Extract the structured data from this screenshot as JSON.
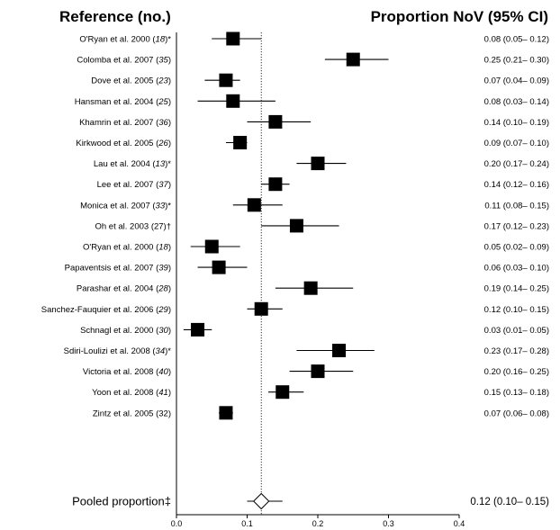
{
  "headers": {
    "left": "Reference (no.)",
    "right": "Proportion NoV (95% CI)"
  },
  "chart_data": {
    "type": "forest",
    "xlim": [
      0.0,
      0.4
    ],
    "xticks": [
      "0.0",
      "0.1",
      "0.2",
      "0.3",
      "0.4"
    ],
    "reference_line": 0.12,
    "studies": [
      {
        "pre": "O'Ryan et al. 2000 (",
        "ref": "18",
        "post": ")*",
        "est": 0.08,
        "lo": 0.05,
        "hi": 0.12,
        "ci_text": "0.08 (0.05– 0.12)"
      },
      {
        "pre": "Colomba et al. 2007 (",
        "ref": "35",
        "post": ")",
        "est": 0.25,
        "lo": 0.21,
        "hi": 0.3,
        "ci_text": "0.25 (0.21– 0.30)"
      },
      {
        "pre": "Dove et al. 2005 (",
        "ref": "23",
        "post": ")",
        "est": 0.07,
        "lo": 0.04,
        "hi": 0.09,
        "ci_text": "0.07 (0.04– 0.09)"
      },
      {
        "pre": "Hansman et al. 2004 (",
        "ref": "25",
        "post": ")",
        "est": 0.08,
        "lo": 0.03,
        "hi": 0.14,
        "ci_text": "0.08 (0.03– 0.14)"
      },
      {
        "pre": "Khamrin et al. 2007 (",
        "ref": "36",
        "post": ")",
        "est": 0.14,
        "lo": 0.1,
        "hi": 0.19,
        "ci_text": "0.14 (0.10– 0.19)"
      },
      {
        "pre": "Kirkwood et al. 2005 (",
        "ref": "26",
        "post": ")",
        "est": 0.09,
        "lo": 0.07,
        "hi": 0.1,
        "ci_text": "0.09 (0.07– 0.10)"
      },
      {
        "pre": "Lau et al. 2004 (",
        "ref": "13",
        "post": ")*",
        "est": 0.2,
        "lo": 0.17,
        "hi": 0.24,
        "ci_text": "0.20 (0.17– 0.24)"
      },
      {
        "pre": "Lee et al. 2007 (",
        "ref": "37",
        "post": ")",
        "est": 0.14,
        "lo": 0.12,
        "hi": 0.16,
        "ci_text": "0.14 (0.12– 0.16)"
      },
      {
        "pre": "Monica et al. 2007 (",
        "ref": "33",
        "post": ")*",
        "est": 0.11,
        "lo": 0.08,
        "hi": 0.15,
        "ci_text": "0.11 (0.08– 0.15)"
      },
      {
        "pre": "Oh et al. 2003 (27)†",
        "ref": "",
        "post": "",
        "est": 0.17,
        "lo": 0.12,
        "hi": 0.23,
        "ci_text": "0.17 (0.12– 0.23)"
      },
      {
        "pre": "O'Ryan et al. 2000 (",
        "ref": "18",
        "post": ")",
        "est": 0.05,
        "lo": 0.02,
        "hi": 0.09,
        "ci_text": "0.05 (0.02– 0.09)"
      },
      {
        "pre": "Papaventsis et al. 2007 (",
        "ref": "39",
        "post": ")",
        "est": 0.06,
        "lo": 0.03,
        "hi": 0.1,
        "ci_text": "0.06 (0.03– 0.10)"
      },
      {
        "pre": "Parashar et al. 2004 (",
        "ref": "28",
        "post": ")",
        "est": 0.19,
        "lo": 0.14,
        "hi": 0.25,
        "ci_text": "0.19 (0.14– 0.25)"
      },
      {
        "pre": "Sanchez-Fauquier et al. 2006 (",
        "ref": "29",
        "post": ")",
        "est": 0.12,
        "lo": 0.1,
        "hi": 0.15,
        "ci_text": "0.12 (0.10– 0.15)"
      },
      {
        "pre": "Schnagl et al. 2000 (",
        "ref": "30",
        "post": ")",
        "est": 0.03,
        "lo": 0.01,
        "hi": 0.05,
        "ci_text": "0.03 (0.01– 0.05)"
      },
      {
        "pre": "Sdiri-Loulizi et al. 2008 (",
        "ref": "34",
        "post": ")*",
        "est": 0.23,
        "lo": 0.17,
        "hi": 0.28,
        "ci_text": "0.23 (0.17– 0.28)"
      },
      {
        "pre": "Victoria et al. 2008 (",
        "ref": "40",
        "post": ")",
        "est": 0.2,
        "lo": 0.16,
        "hi": 0.25,
        "ci_text": "0.20 (0.16– 0.25)"
      },
      {
        "pre": "Yoon et al. 2008 (",
        "ref": "41",
        "post": ")",
        "est": 0.15,
        "lo": 0.13,
        "hi": 0.18,
        "ci_text": "0.15 (0.13– 0.18)"
      },
      {
        "pre": "Zintz et al. 2005 (32)",
        "ref": "",
        "post": "",
        "est": 0.07,
        "lo": 0.06,
        "hi": 0.08,
        "ci_text": "0.07 (0.06– 0.08)"
      }
    ],
    "pooled": {
      "label": "Pooled proportion‡",
      "est": 0.12,
      "lo": 0.1,
      "hi": 0.15,
      "ci_text": "0.12 (0.10– 0.15)"
    },
    "colors": {
      "marker": "#000000",
      "line": "#000000",
      "diamond_fill": "#ffffff"
    }
  }
}
